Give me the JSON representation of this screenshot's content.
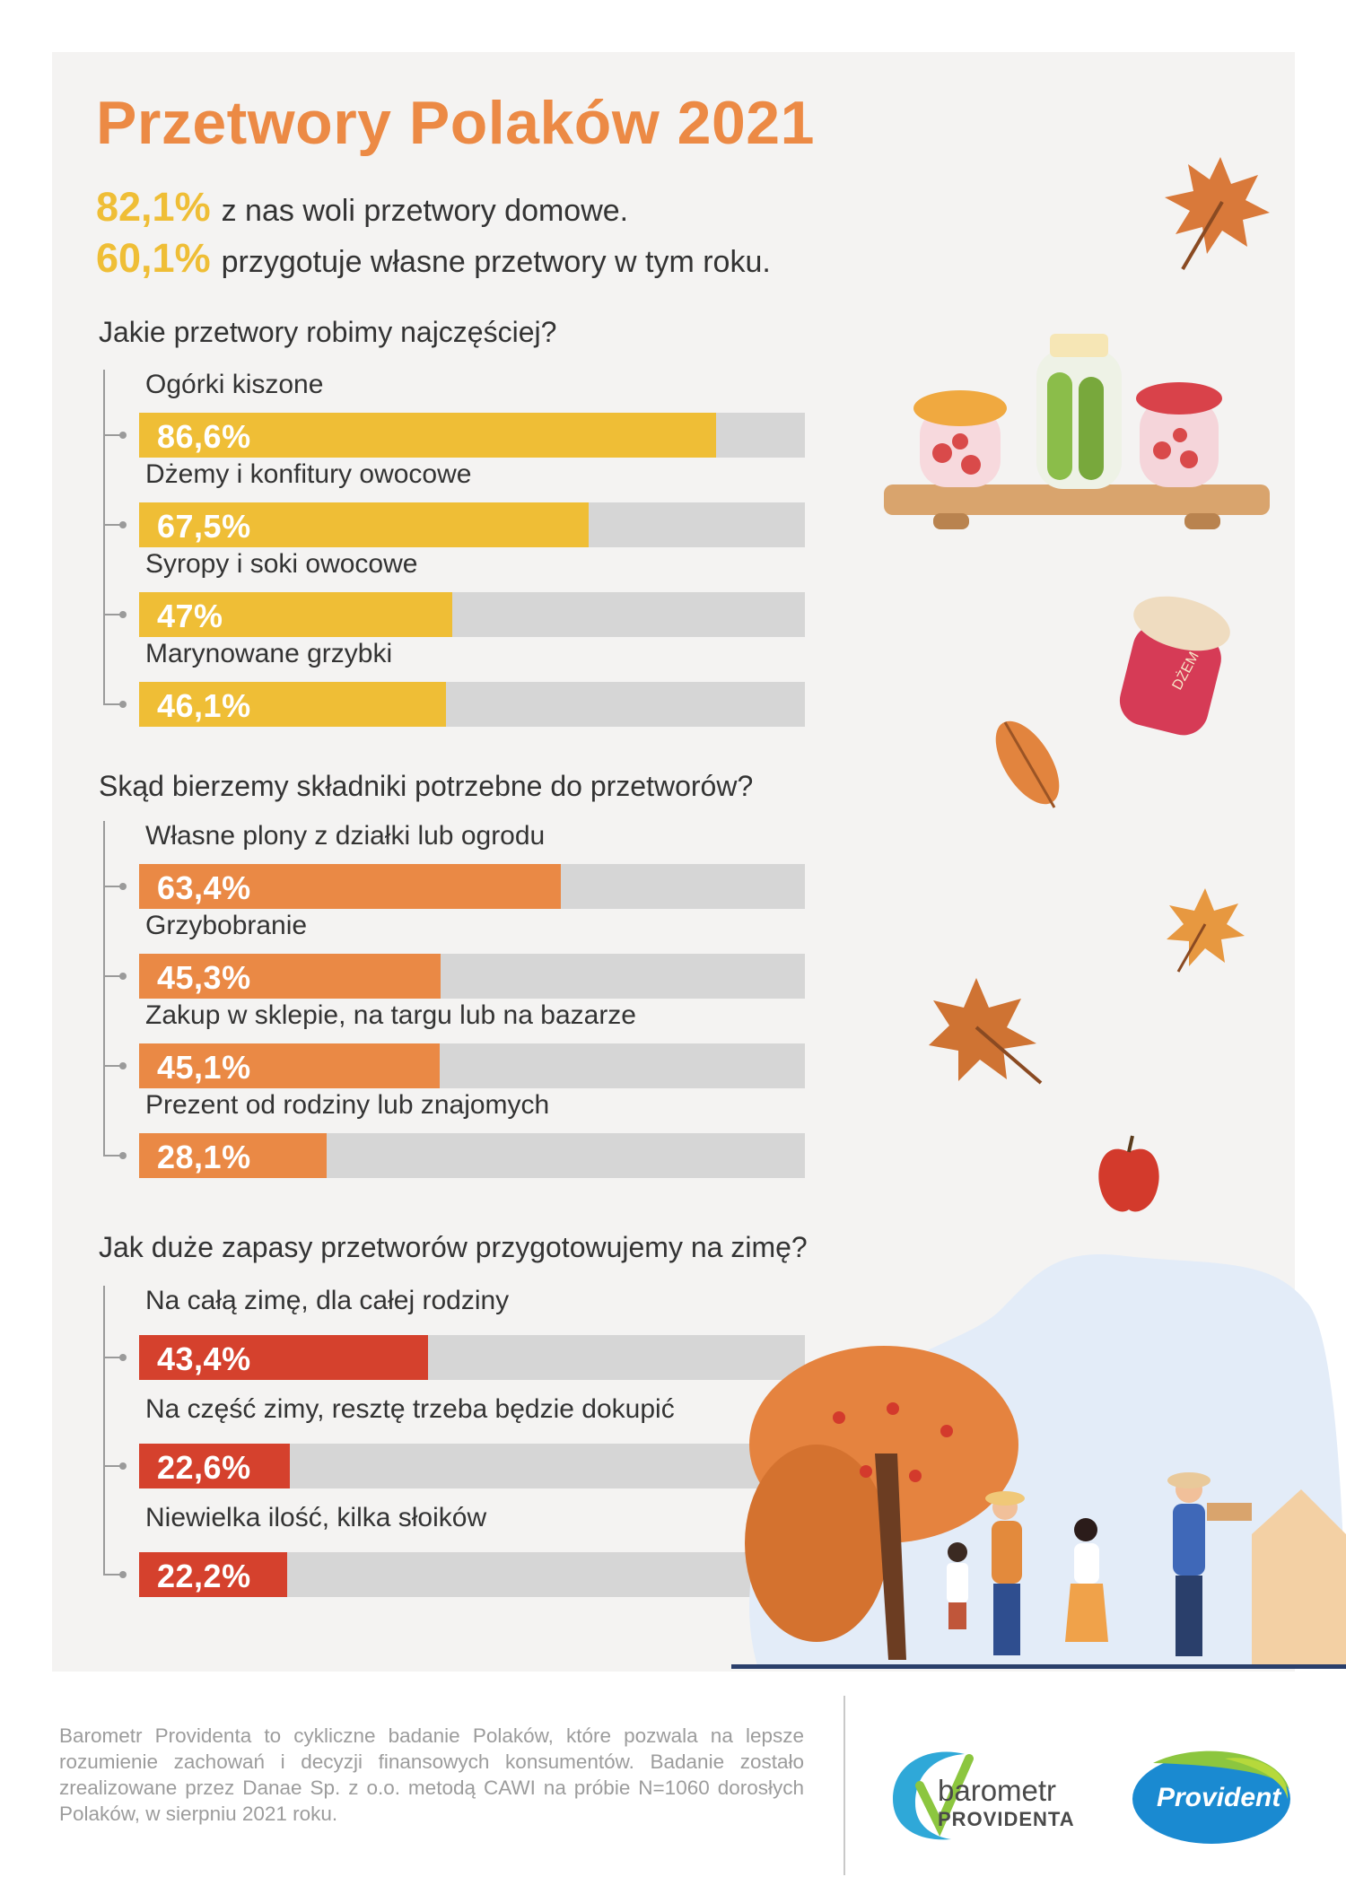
{
  "title": "Przetwory Polaków 2021",
  "intro": [
    {
      "pct": "82,1%",
      "text": "z nas woli przetwory domowe."
    },
    {
      "pct": "60,1%",
      "text": "przygotuje własne przetwory w tym roku."
    }
  ],
  "sections": [
    {
      "question": "Jakie przetwory robimy najczęściej?"
    },
    {
      "question": "Skąd bierzemy składniki potrzebne do przetworów?"
    },
    {
      "question": "Jak duże zapasy przetworów przygotowujemy na zimę?"
    }
  ],
  "colors": {
    "section_1": "#efbe36",
    "section_2": "#ea8945",
    "section_3": "#d5412d",
    "title": "#ec8a45",
    "track": "#d6d6d6"
  },
  "chart_data": [
    {
      "type": "bar",
      "categories": [
        "Ogórki kiszone",
        "Dżemy i konfitury owocowe",
        "Syropy i soki owocowe",
        "Marynowane grzybki"
      ],
      "values": [
        86.6,
        67.5,
        47.0,
        46.1
      ],
      "value_labels": [
        "86,6%",
        "67,5%",
        "47%",
        "46,1%"
      ],
      "title": "Jakie przetwory robimy najczęściej?",
      "ylim": [
        0,
        100
      ]
    },
    {
      "type": "bar",
      "categories": [
        "Własne plony z działki lub ogrodu",
        "Grzybobranie",
        "Zakup w sklepie, na targu lub na bazarze",
        "Prezent od rodziny lub znajomych"
      ],
      "values": [
        63.4,
        45.3,
        45.1,
        28.1
      ],
      "value_labels": [
        "63,4%",
        "45,3%",
        "45,1%",
        "28,1%"
      ],
      "title": "Skąd bierzemy składniki potrzebne do przetworów?",
      "ylim": [
        0,
        100
      ]
    },
    {
      "type": "bar",
      "categories": [
        "Na całą zimę, dla całej rodziny",
        "Na część zimy, resztę trzeba będzie dokupić",
        "Niewielka ilość, kilka słoików"
      ],
      "values": [
        43.4,
        22.6,
        22.2
      ],
      "value_labels": [
        "43,4%",
        "22,6%",
        "22,2%"
      ],
      "title": "Jak duże zapasy przetworów przygotowujemy na zimę?",
      "ylim": [
        0,
        100
      ]
    }
  ],
  "footer": {
    "text": "Barometr Providenta to cykliczne badanie Polaków, które pozwala na lepsze rozumienie zachowań i decyzji finansowych konsumentów. Badanie zostało zrealizowane przez Danae Sp. z o.o. metodą CAWI na próbie N=1060 dorosłych Polaków, w sierpniu 2021 roku.",
    "logo_barometr_line1": "barometr",
    "logo_barometr_line2": "PROVIDENTA",
    "logo_provident": "Provident"
  },
  "jar_label": "DŻEM"
}
